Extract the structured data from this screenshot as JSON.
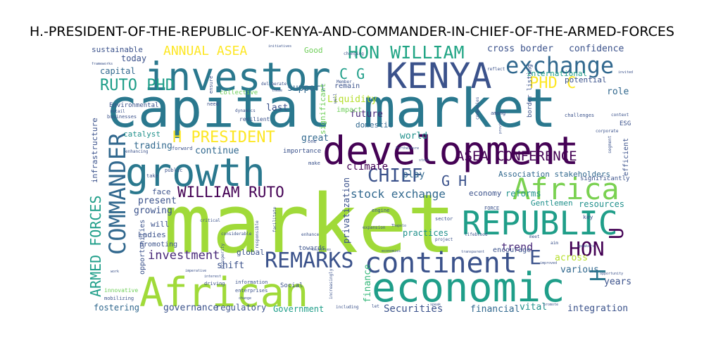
{
  "chart_data": {
    "type": "wordcloud",
    "title": "H.-PRESIDENT-OF-THE-REPUBLIC-OF-KENYA-AND-COMMANDER-IN-CHIEF-OF-THE-ARMED-FORCES",
    "palette": "viridis",
    "words": [
      {
        "text": "capital market",
        "color": "#2a788e"
      },
      {
        "text": "market",
        "color": "#a0da39"
      },
      {
        "text": "development",
        "color": "#440154"
      },
      {
        "text": "investor",
        "color": "#2a788e"
      },
      {
        "text": "KENYA",
        "color": "#3b528b"
      },
      {
        "text": "growth",
        "color": "#2a788e"
      },
      {
        "text": "African",
        "color": "#a0da39"
      },
      {
        "text": "economic",
        "color": "#1f9e89"
      },
      {
        "text": "continent",
        "color": "#3b528b"
      },
      {
        "text": "REPUBLIC",
        "color": "#1f9e89"
      },
      {
        "text": "Africa",
        "color": "#7ad151"
      },
      {
        "text": "exchange",
        "color": "#31688e"
      },
      {
        "text": "REMARKS",
        "color": "#3b528b"
      },
      {
        "text": "COMMANDER",
        "color": "#31688e"
      },
      {
        "text": "HON WILLIAM",
        "color": "#21a585"
      },
      {
        "text": "ARMED FORCES",
        "color": "#1f9e89"
      },
      {
        "text": "CHIEF",
        "color": "#3b528b"
      },
      {
        "text": "WILLIAM RUTO",
        "color": "#440154"
      },
      {
        "text": "HON",
        "color": "#440154"
      },
      {
        "text": "RUTO PHD",
        "color": "#1f9e89"
      },
      {
        "text": "PHD C",
        "color": "#fde725"
      },
      {
        "text": "H PRESIDENT",
        "color": "#fde725"
      },
      {
        "text": "ASEA CONFERENCE",
        "color": "#440154"
      },
      {
        "text": "ANNUAL ASEA",
        "color": "#fde725"
      },
      {
        "text": "stock exchange",
        "color": "#31688e"
      },
      {
        "text": "investment",
        "color": "#482878"
      },
      {
        "text": "C G",
        "color": "#1f9e89"
      },
      {
        "text": "G H",
        "color": "#3b528b"
      },
      {
        "text": "E",
        "color": "#3b528b"
      },
      {
        "text": "H",
        "color": "#2a788e"
      },
      {
        "text": "U",
        "color": "#440154"
      },
      {
        "text": "trend",
        "color": "#482878"
      },
      {
        "text": "climate",
        "color": "#440154"
      },
      {
        "text": "Securities",
        "color": "#3b528b"
      },
      {
        "text": "governance",
        "color": "#3b528b"
      },
      {
        "text": "integration",
        "color": "#3b528b"
      },
      {
        "text": "Association stakeholders",
        "color": "#31688e"
      },
      {
        "text": "cross border",
        "color": "#3b528b"
      },
      {
        "text": "confidence",
        "color": "#3b528b"
      },
      {
        "text": "international",
        "color": "#1f9e89"
      },
      {
        "text": "Liquidity",
        "color": "#b5de2b"
      },
      {
        "text": "support",
        "color": "#31688e"
      },
      {
        "text": "future",
        "color": "#482878"
      },
      {
        "text": "world",
        "color": "#21918c"
      },
      {
        "text": "continue",
        "color": "#31688e"
      },
      {
        "text": "trading",
        "color": "#31688e"
      },
      {
        "text": "growing",
        "color": "#3b528b"
      },
      {
        "text": "present",
        "color": "#3b528b"
      },
      {
        "text": "fostering",
        "color": "#31688e"
      },
      {
        "text": "regulatory",
        "color": "#3b528b"
      },
      {
        "text": "Government",
        "color": "#1f9e89"
      },
      {
        "text": "financial",
        "color": "#31688e"
      },
      {
        "text": "vital",
        "color": "#21918c"
      },
      {
        "text": "across",
        "color": "#b5de2b"
      },
      {
        "text": "various",
        "color": "#31688e"
      },
      {
        "text": "years",
        "color": "#3b528b"
      },
      {
        "text": "role",
        "color": "#31688e"
      },
      {
        "text": "potential",
        "color": "#3b528b"
      },
      {
        "text": "resources",
        "color": "#21918c"
      },
      {
        "text": "Gentlemen",
        "color": "#21918c"
      },
      {
        "text": "reforms",
        "color": "#21918c"
      },
      {
        "text": "economy",
        "color": "#3b528b"
      },
      {
        "text": "finance",
        "color": "#35b779"
      },
      {
        "text": "privatization",
        "color": "#3b528b"
      },
      {
        "text": "shift",
        "color": "#3b528b"
      },
      {
        "text": "global",
        "color": "#3b528b"
      },
      {
        "text": "practices",
        "color": "#21918c"
      },
      {
        "text": "play",
        "color": "#31688e"
      },
      {
        "text": "great",
        "color": "#31688e"
      },
      {
        "text": "domestic",
        "color": "#31688e"
      },
      {
        "text": "last",
        "color": "#3b528b"
      },
      {
        "text": "significant",
        "color": "#6ece58"
      },
      {
        "text": "capital",
        "color": "#31688e"
      },
      {
        "text": "today",
        "color": "#3b528b"
      },
      {
        "text": "sustainable",
        "color": "#3b528b"
      },
      {
        "text": "infrastructure",
        "color": "#3b528b"
      },
      {
        "text": "catalyst",
        "color": "#21918c"
      },
      {
        "text": "Ladies",
        "color": "#3b528b"
      },
      {
        "text": "promoting",
        "color": "#3b528b"
      },
      {
        "text": "opportunities",
        "color": "#3b528b"
      },
      {
        "text": "will",
        "color": "#3b528b"
      },
      {
        "text": "face",
        "color": "#3b528b"
      },
      {
        "text": "Good",
        "color": "#6ece58"
      },
      {
        "text": "remain",
        "color": "#3b528b"
      },
      {
        "text": "impact",
        "color": "#6ece58"
      },
      {
        "text": "efficient",
        "color": "#3b528b"
      },
      {
        "text": "ESG",
        "color": "#3b528b"
      },
      {
        "text": "significantly",
        "color": "#3b528b"
      },
      {
        "text": "encourage",
        "color": "#3b528b"
      },
      {
        "text": "border listing",
        "color": "#3b528b"
      },
      {
        "text": "Social",
        "color": "#3b528b"
      },
      {
        "text": "towards",
        "color": "#3b528b"
      },
      {
        "text": "importance",
        "color": "#3b528b"
      },
      {
        "text": "Environmental",
        "color": "#3b528b"
      },
      {
        "text": "collective",
        "color": "#6ece58"
      },
      {
        "text": "resilient",
        "color": "#3b528b"
      },
      {
        "text": "innovative",
        "color": "#6ece58"
      },
      {
        "text": "information",
        "color": "#3b528b"
      },
      {
        "text": "enterprises",
        "color": "#3b528b"
      },
      {
        "text": "driving",
        "color": "#3b528b"
      },
      {
        "text": "mobilizing",
        "color": "#3b528b"
      },
      {
        "text": "key",
        "color": "#3b528b"
      },
      {
        "text": "sector",
        "color": "#3b528b"
      },
      {
        "text": "engine",
        "color": "#3b528b"
      },
      {
        "text": "FORCE",
        "color": "#3b528b"
      },
      {
        "text": "make",
        "color": "#3b528b"
      },
      {
        "text": "public",
        "color": "#3b528b"
      },
      {
        "text": "take",
        "color": "#3b528b"
      },
      {
        "text": "enhancing",
        "color": "#3b528b"
      },
      {
        "text": "forward",
        "color": "#3b528b"
      },
      {
        "text": "need",
        "color": "#3b528b"
      },
      {
        "text": "ensure",
        "color": "#3b528b"
      },
      {
        "text": "dynamics",
        "color": "#3b528b"
      },
      {
        "text": "businesses",
        "color": "#3b528b"
      },
      {
        "text": "retail",
        "color": "#3b528b"
      },
      {
        "text": "among",
        "color": "#3b528b"
      },
      {
        "text": "companies",
        "color": "#3b528b"
      },
      {
        "text": "challenges",
        "color": "#3b528b"
      },
      {
        "text": "corporate",
        "color": "#3b528b"
      },
      {
        "text": "context",
        "color": "#3b528b"
      },
      {
        "text": "segment",
        "color": "#3b528b"
      },
      {
        "text": "aim",
        "color": "#3b528b"
      },
      {
        "text": "meet",
        "color": "#3b528b"
      },
      {
        "text": "project",
        "color": "#3b528b"
      },
      {
        "text": "lifeblood",
        "color": "#3b528b"
      },
      {
        "text": "including",
        "color": "#3b528b"
      },
      {
        "text": "speak",
        "color": "#3b528b"
      },
      {
        "text": "promote",
        "color": "#3b528b"
      },
      {
        "text": "expansion",
        "color": "#3b528b"
      },
      {
        "text": "enhance",
        "color": "#3b528b"
      },
      {
        "text": "facilitate",
        "color": "#3b528b"
      },
      {
        "text": "responsible",
        "color": "#3b528b"
      },
      {
        "text": "considerable",
        "color": "#3b528b"
      },
      {
        "text": "critical",
        "color": "#3b528b"
      },
      {
        "text": "deliberate",
        "color": "#3b528b"
      },
      {
        "text": "initiatives",
        "color": "#3b528b"
      },
      {
        "text": "Member",
        "color": "#3b528b"
      },
      {
        "text": "changing",
        "color": "#3b528b"
      },
      {
        "text": "reflect",
        "color": "#3b528b"
      },
      {
        "text": "work",
        "color": "#3b528b"
      },
      {
        "text": "opportunity",
        "color": "#3b528b"
      },
      {
        "text": "improved",
        "color": "#3b528b"
      },
      {
        "text": "transparent",
        "color": "#3b528b"
      },
      {
        "text": "countries",
        "color": "#3b528b"
      },
      {
        "text": "economies",
        "color": "#3b528b"
      },
      {
        "text": "Furthermore",
        "color": "#3b528b"
      },
      {
        "text": "provide",
        "color": "#3b528b"
      },
      {
        "text": "stock",
        "color": "#3b528b"
      },
      {
        "text": "let",
        "color": "#3b528b"
      },
      {
        "text": "change",
        "color": "#3b528b"
      },
      {
        "text": "interest",
        "color": "#3b528b"
      },
      {
        "text": "prosperity",
        "color": "#3b528b"
      },
      {
        "text": "imperative",
        "color": "#3b528b"
      },
      {
        "text": "theme",
        "color": "#3b528b"
      },
      {
        "text": "one",
        "color": "#3b528b"
      },
      {
        "text": "increasingly",
        "color": "#3b528b"
      },
      {
        "text": "well",
        "color": "#3b528b"
      },
      {
        "text": "Thapelo",
        "color": "#3b528b"
      },
      {
        "text": "frameworks",
        "color": "#3b528b"
      },
      {
        "text": "invited",
        "color": "#3b528b"
      },
      {
        "text": "speakers",
        "color": "#3b528b"
      }
    ]
  }
}
